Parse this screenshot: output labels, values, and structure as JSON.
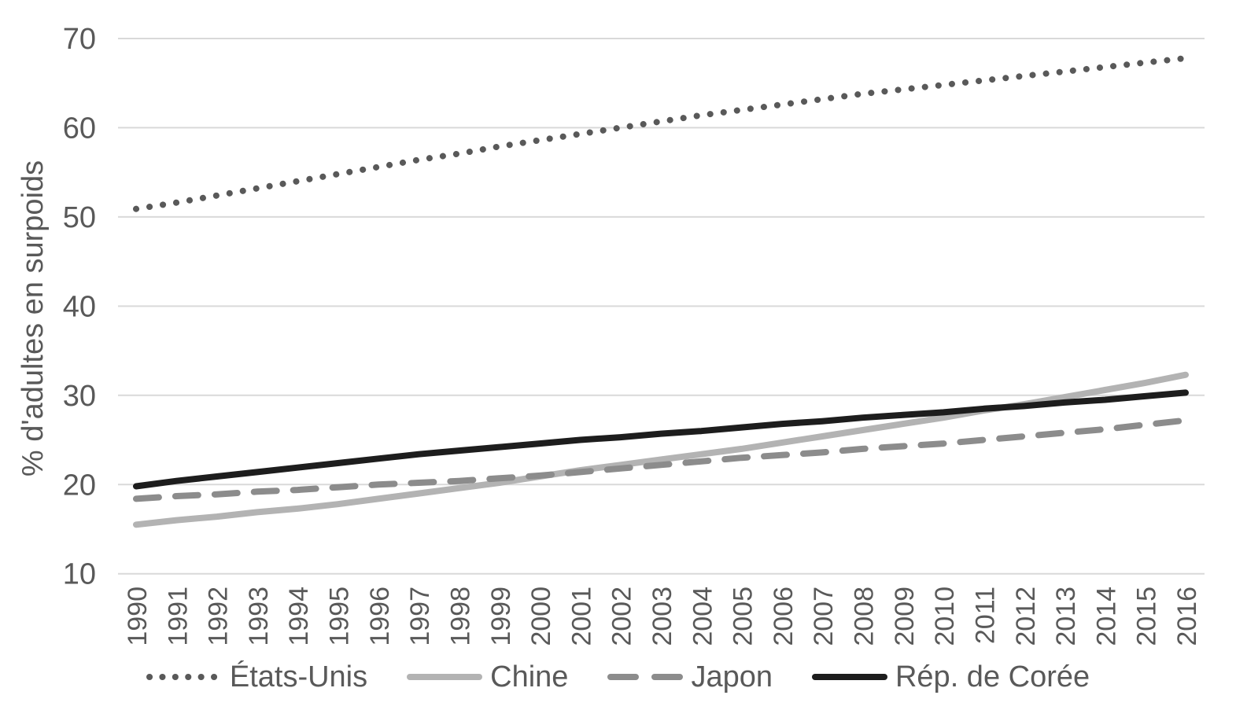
{
  "chart_data": {
    "type": "line",
    "title": "",
    "xlabel": "",
    "ylabel": "% d'adultes en surpoids",
    "ylim": [
      10,
      70
    ],
    "yticks": [
      10,
      20,
      30,
      40,
      50,
      60,
      70
    ],
    "grid": true,
    "legend_position": "bottom",
    "text_color": "#595959",
    "gridline_color": "#d9d9d9",
    "categories": [
      "1990",
      "1991",
      "1992",
      "1993",
      "1994",
      "1995",
      "1996",
      "1997",
      "1998",
      "1999",
      "2000",
      "2001",
      "2002",
      "2003",
      "2004",
      "2005",
      "2006",
      "2007",
      "2008",
      "2009",
      "2010",
      "2011",
      "2012",
      "2013",
      "2014",
      "2015",
      "2016"
    ],
    "series": [
      {
        "name": "États-Unis",
        "color": "#595959",
        "line_style": "dotted",
        "values": [
          50.9,
          51.6,
          52.4,
          53.2,
          54.0,
          54.8,
          55.6,
          56.4,
          57.1,
          57.9,
          58.6,
          59.3,
          60.0,
          60.7,
          61.4,
          62.0,
          62.6,
          63.2,
          63.8,
          64.3,
          64.8,
          65.3,
          65.8,
          66.3,
          66.8,
          67.3,
          67.8
        ]
      },
      {
        "name": "Chine",
        "color": "#b3b3b3",
        "line_style": "solid",
        "values": [
          15.5,
          16.0,
          16.4,
          16.9,
          17.3,
          17.8,
          18.4,
          19.0,
          19.6,
          20.2,
          20.9,
          21.6,
          22.2,
          22.8,
          23.4,
          24.0,
          24.7,
          25.4,
          26.1,
          26.8,
          27.5,
          28.3,
          29.0,
          29.8,
          30.6,
          31.4,
          32.3
        ]
      },
      {
        "name": "Japon",
        "color": "#8c8c8c",
        "line_style": "dashed",
        "values": [
          18.4,
          18.7,
          18.9,
          19.2,
          19.4,
          19.7,
          20.0,
          20.2,
          20.4,
          20.7,
          21.0,
          21.4,
          21.8,
          22.2,
          22.6,
          23.0,
          23.3,
          23.6,
          24.0,
          24.3,
          24.6,
          25.0,
          25.4,
          25.8,
          26.2,
          26.7,
          27.2
        ]
      },
      {
        "name": "Rép. de Corée",
        "color": "#1d1d1d",
        "line_style": "solid",
        "values": [
          19.8,
          20.4,
          20.9,
          21.4,
          21.9,
          22.4,
          22.9,
          23.4,
          23.8,
          24.2,
          24.6,
          25.0,
          25.3,
          25.7,
          26.0,
          26.4,
          26.8,
          27.1,
          27.5,
          27.8,
          28.1,
          28.5,
          28.8,
          29.2,
          29.5,
          29.9,
          30.3
        ]
      }
    ]
  }
}
